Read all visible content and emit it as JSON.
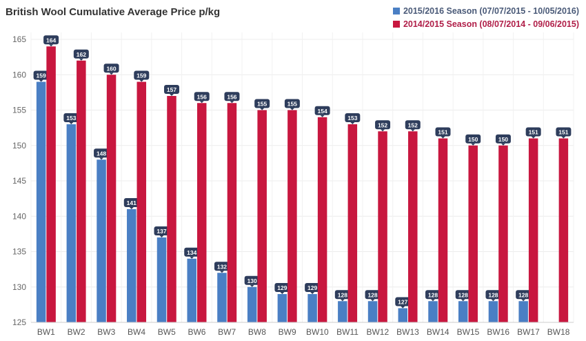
{
  "chart_data": {
    "type": "bar",
    "title": "British Wool Cumulative Average Price p/kg",
    "xlabel": "",
    "ylabel": "",
    "ylim": [
      125,
      165
    ],
    "yticks": [
      125,
      130,
      135,
      140,
      145,
      150,
      155,
      160,
      165
    ],
    "grid": true,
    "legend_position": "top-right",
    "categories": [
      "BW1",
      "BW2",
      "BW3",
      "BW4",
      "BW5",
      "BW6",
      "BW7",
      "BW8",
      "BW9",
      "BW10",
      "BW11",
      "BW12",
      "BW13",
      "BW14",
      "BW15",
      "BW16",
      "BW17",
      "BW18"
    ],
    "series": [
      {
        "name": "2015/2016 Season (07/07/2015 - 10/05/2016)",
        "color": "#4a7fc4",
        "values": [
          159,
          153,
          148,
          141,
          137,
          134,
          132,
          130,
          129,
          129,
          128,
          128,
          127,
          128,
          128,
          128,
          128,
          null
        ]
      },
      {
        "name": "2014/2015 Season (08/07/2014 - 09/06/2015)",
        "color": "#c8173f",
        "values": [
          164,
          162,
          160,
          159,
          157,
          156,
          156,
          155,
          155,
          154,
          153,
          152,
          152,
          151,
          150,
          150,
          151,
          151
        ]
      }
    ]
  }
}
